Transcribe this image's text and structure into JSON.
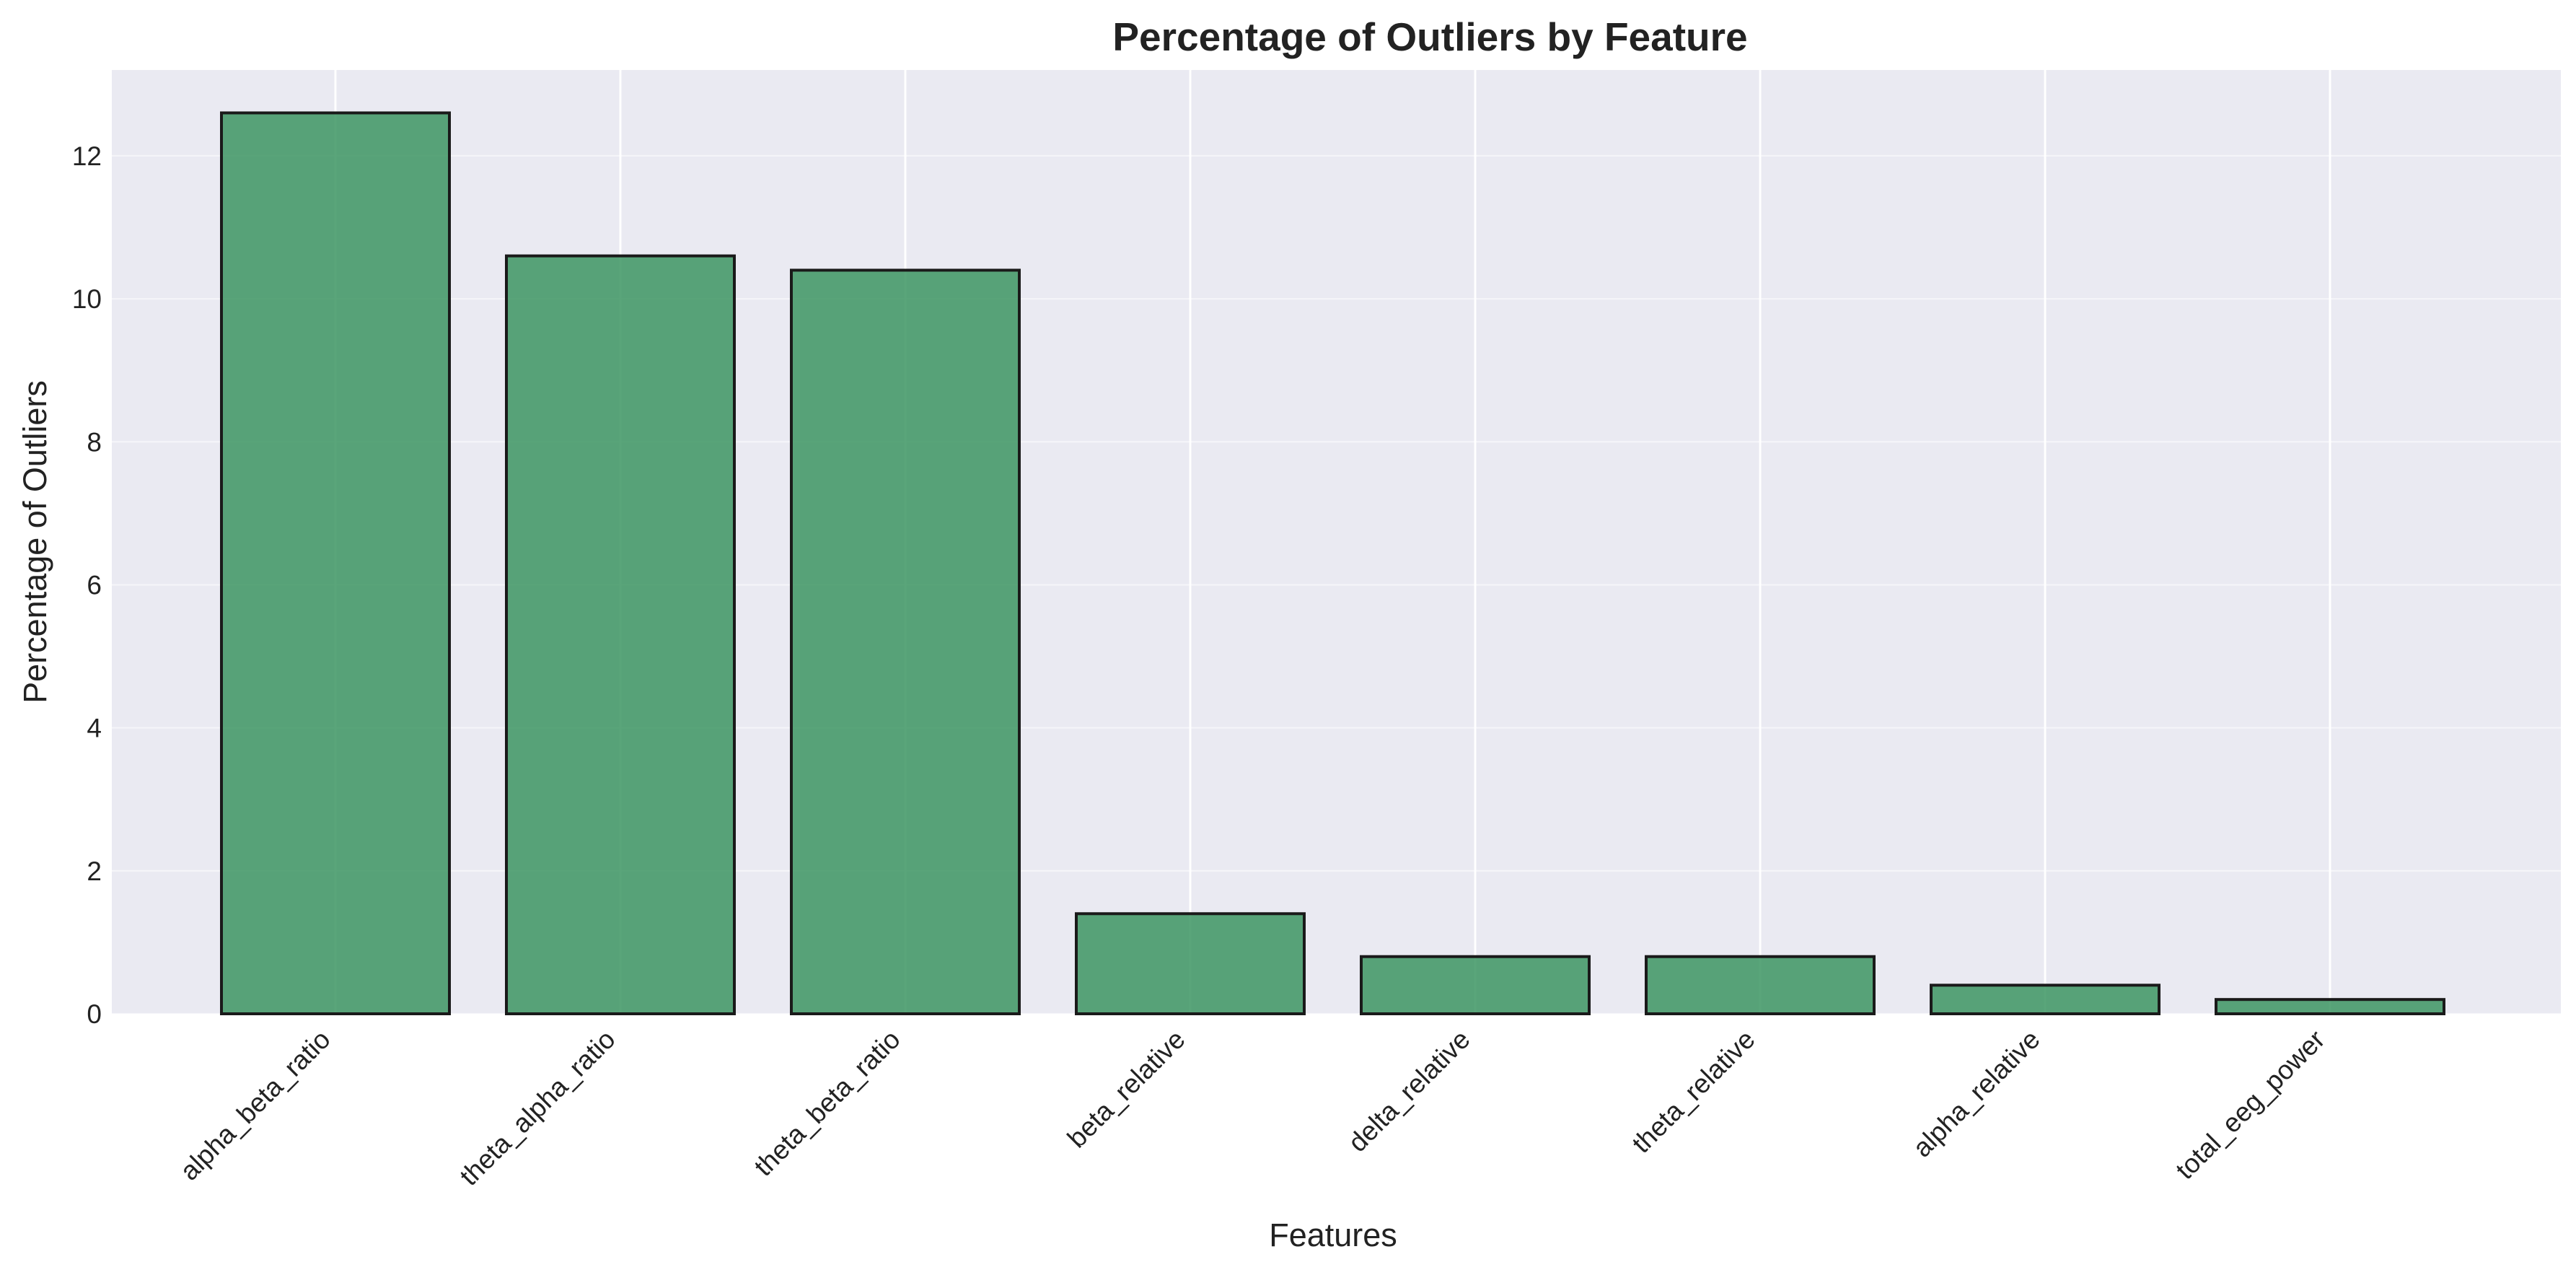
{
  "chart_data": {
    "type": "bar",
    "title": "Percentage of Outliers by Feature",
    "xlabel": "Features",
    "ylabel": "Percentage of Outliers",
    "categories": [
      "alpha_beta_ratio",
      "theta_alpha_ratio",
      "theta_beta_ratio",
      "beta_relative",
      "delta_relative",
      "theta_relative",
      "alpha_relative",
      "total_eeg_power"
    ],
    "values": [
      12.6,
      10.6,
      10.4,
      1.4,
      0.8,
      0.8,
      0.4,
      0.2
    ],
    "ylim": [
      0,
      13.2
    ],
    "yticks": [
      0,
      2,
      4,
      6,
      8,
      10,
      12
    ],
    "grid": true,
    "bar_color": "#3d9563",
    "bar_edge_color": "#1a1a1a",
    "plot_background": "#eaeaf2",
    "grid_color": "#ffffff"
  }
}
